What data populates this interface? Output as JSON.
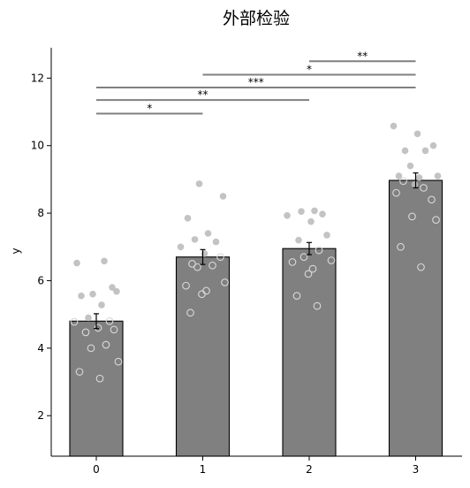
{
  "chart_data": {
    "type": "bar",
    "title": "外部检验",
    "xlabel": "",
    "ylabel": "y",
    "categories": [
      "0",
      "1",
      "2",
      "3"
    ],
    "values": [
      4.8,
      6.7,
      6.95,
      8.97
    ],
    "errors": [
      0.22,
      0.22,
      0.18,
      0.22
    ],
    "ylim": [
      0.8,
      12.9
    ],
    "yticks": [
      2,
      4,
      6,
      8,
      10,
      12
    ],
    "grid": false,
    "colors": {
      "bar": "#808080",
      "bar_edge": "#000000",
      "bracket": "#808080",
      "point": "#bdbdbd"
    },
    "points": [
      {
        "x": 0,
        "y": 6.58,
        "filled": true
      },
      {
        "x": 0,
        "y": 6.52,
        "filled": true
      },
      {
        "x": 0,
        "y": 5.8,
        "filled": true
      },
      {
        "x": 0,
        "y": 5.6,
        "filled": true
      },
      {
        "x": 0,
        "y": 5.68,
        "filled": true
      },
      {
        "x": 0,
        "y": 5.55,
        "filled": true
      },
      {
        "x": 0,
        "y": 5.28,
        "filled": true
      },
      {
        "x": 0,
        "y": 4.9,
        "filled": true
      },
      {
        "x": 0,
        "y": 4.8,
        "filled": false
      },
      {
        "x": 0,
        "y": 4.78,
        "filled": false
      },
      {
        "x": 0,
        "y": 4.6,
        "filled": false
      },
      {
        "x": 0,
        "y": 4.55,
        "filled": false
      },
      {
        "x": 0,
        "y": 4.47,
        "filled": false
      },
      {
        "x": 0,
        "y": 4.1,
        "filled": false
      },
      {
        "x": 0,
        "y": 4.0,
        "filled": false
      },
      {
        "x": 0,
        "y": 3.6,
        "filled": false
      },
      {
        "x": 0,
        "y": 3.3,
        "filled": false
      },
      {
        "x": 0,
        "y": 3.1,
        "filled": false
      },
      {
        "x": 1,
        "y": 8.87,
        "filled": true
      },
      {
        "x": 1,
        "y": 8.5,
        "filled": true
      },
      {
        "x": 1,
        "y": 7.85,
        "filled": true
      },
      {
        "x": 1,
        "y": 7.4,
        "filled": true
      },
      {
        "x": 1,
        "y": 7.22,
        "filled": true
      },
      {
        "x": 1,
        "y": 7.15,
        "filled": true
      },
      {
        "x": 1,
        "y": 7.0,
        "filled": true
      },
      {
        "x": 1,
        "y": 6.8,
        "filled": true
      },
      {
        "x": 1,
        "y": 6.7,
        "filled": false
      },
      {
        "x": 1,
        "y": 6.5,
        "filled": false
      },
      {
        "x": 1,
        "y": 6.45,
        "filled": false
      },
      {
        "x": 1,
        "y": 6.4,
        "filled": false
      },
      {
        "x": 1,
        "y": 5.95,
        "filled": false
      },
      {
        "x": 1,
        "y": 5.85,
        "filled": false
      },
      {
        "x": 1,
        "y": 5.7,
        "filled": false
      },
      {
        "x": 1,
        "y": 5.6,
        "filled": false
      },
      {
        "x": 1,
        "y": 5.05,
        "filled": false
      },
      {
        "x": 2,
        "y": 8.07,
        "filled": true
      },
      {
        "x": 2,
        "y": 8.05,
        "filled": true
      },
      {
        "x": 2,
        "y": 7.97,
        "filled": true
      },
      {
        "x": 2,
        "y": 7.93,
        "filled": true
      },
      {
        "x": 2,
        "y": 7.75,
        "filled": true
      },
      {
        "x": 2,
        "y": 7.35,
        "filled": true
      },
      {
        "x": 2,
        "y": 7.2,
        "filled": true
      },
      {
        "x": 2,
        "y": 6.9,
        "filled": false
      },
      {
        "x": 2,
        "y": 6.7,
        "filled": false
      },
      {
        "x": 2,
        "y": 6.6,
        "filled": false
      },
      {
        "x": 2,
        "y": 6.55,
        "filled": false
      },
      {
        "x": 2,
        "y": 6.35,
        "filled": false
      },
      {
        "x": 2,
        "y": 6.2,
        "filled": false
      },
      {
        "x": 2,
        "y": 5.55,
        "filled": false
      },
      {
        "x": 2,
        "y": 5.25,
        "filled": false
      },
      {
        "x": 3,
        "y": 10.58,
        "filled": true
      },
      {
        "x": 3,
        "y": 10.35,
        "filled": true
      },
      {
        "x": 3,
        "y": 10.0,
        "filled": true
      },
      {
        "x": 3,
        "y": 9.85,
        "filled": true
      },
      {
        "x": 3,
        "y": 9.85,
        "filled": true
      },
      {
        "x": 3,
        "y": 9.4,
        "filled": true
      },
      {
        "x": 3,
        "y": 9.1,
        "filled": true
      },
      {
        "x": 3,
        "y": 9.1,
        "filled": true
      },
      {
        "x": 3,
        "y": 9.05,
        "filled": true
      },
      {
        "x": 3,
        "y": 8.85,
        "filled": true
      },
      {
        "x": 3,
        "y": 8.95,
        "filled": false
      },
      {
        "x": 3,
        "y": 8.75,
        "filled": false
      },
      {
        "x": 3,
        "y": 8.6,
        "filled": false
      },
      {
        "x": 3,
        "y": 8.4,
        "filled": false
      },
      {
        "x": 3,
        "y": 7.9,
        "filled": false
      },
      {
        "x": 3,
        "y": 7.8,
        "filled": false
      },
      {
        "x": 3,
        "y": 7.0,
        "filled": false
      },
      {
        "x": 3,
        "y": 6.4,
        "filled": false
      }
    ],
    "significance": [
      {
        "from": 0,
        "to": 1,
        "y": 10.95,
        "label": "*"
      },
      {
        "from": 0,
        "to": 2,
        "y": 11.35,
        "label": "**"
      },
      {
        "from": 0,
        "to": 3,
        "y": 11.72,
        "label": "***"
      },
      {
        "from": 1,
        "to": 3,
        "y": 12.1,
        "label": "*"
      },
      {
        "from": 2,
        "to": 3,
        "y": 12.5,
        "label": "**"
      }
    ]
  }
}
